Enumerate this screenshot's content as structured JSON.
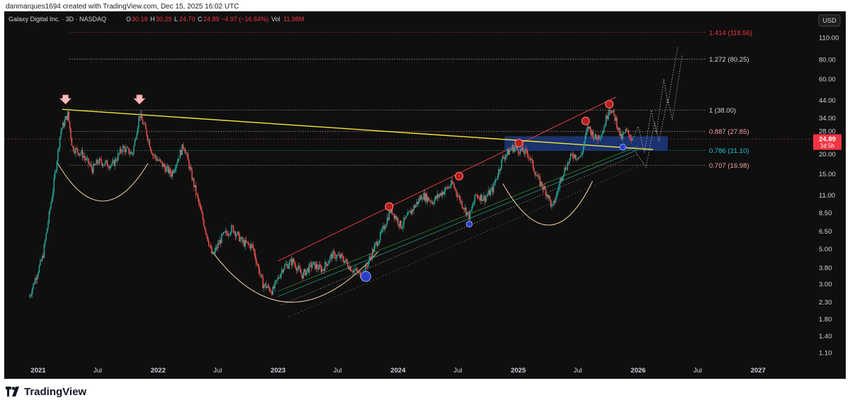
{
  "caption": "danmarques1694 created with TradingView.com, Dec 15, 2025 16:02 UTC",
  "legend": {
    "symbol": "Galaxy Digital Inc. · 3D · NASDAQ",
    "o_label": "O",
    "o_value": "30.19",
    "h_label": "H",
    "h_value": "30.29",
    "l_label": "L",
    "l_value": "24.70",
    "c_label": "C",
    "c_value": "24.89",
    "change": "−4.97 (−16.64%)",
    "vol_label": "Vol",
    "vol_value": "11.98M"
  },
  "currency": "USD",
  "footer": {
    "brand": "TradingView"
  },
  "colors": {
    "background": "#0f0f0f",
    "up": "#26a69a",
    "down": "#ef5350",
    "trendline": "#f5e63b",
    "channel": "#e03c3c",
    "support_band": "#1f3f8f",
    "fib_teal": "#26c6da",
    "price_tag": "#f23645",
    "arc": "#e6c99a"
  },
  "chart_data": {
    "type": "candlestick",
    "ylog": true,
    "y_ticks": [
      "110.00",
      "80.00",
      "60.00",
      "44.00",
      "34.00",
      "28.00",
      "20.00",
      "15.00",
      "11.00",
      "8.50",
      "6.50",
      "5.00",
      "3.80",
      "3.00",
      "2.30",
      "1.80",
      "1.40",
      "1.10"
    ],
    "x_ticks": [
      {
        "label": "2021",
        "date": "2021-01-01"
      },
      {
        "label": "Jul",
        "date": "2021-07-01"
      },
      {
        "label": "2022",
        "date": "2022-01-01"
      },
      {
        "label": "Jul",
        "date": "2022-07-01"
      },
      {
        "label": "2023",
        "date": "2023-01-01"
      },
      {
        "label": "Jul",
        "date": "2023-07-01"
      },
      {
        "label": "2024",
        "date": "2024-01-01"
      },
      {
        "label": "Jul",
        "date": "2024-07-01"
      },
      {
        "label": "2025",
        "date": "2025-01-01"
      },
      {
        "label": "Jul",
        "date": "2025-07-01"
      },
      {
        "label": "2026",
        "date": "2026-01-01"
      },
      {
        "label": "Jul",
        "date": "2026-07-01"
      },
      {
        "label": "2027",
        "date": "2027-01-01"
      }
    ],
    "price_path": [
      [
        "2020-12-05",
        2.5
      ],
      [
        "2021-01-15",
        4.5
      ],
      [
        "2021-02-15",
        12
      ],
      [
        "2021-03-10",
        28
      ],
      [
        "2021-04-01",
        36
      ],
      [
        "2021-04-15",
        22
      ],
      [
        "2021-05-15",
        20
      ],
      [
        "2021-06-15",
        16
      ],
      [
        "2021-07-01",
        18
      ],
      [
        "2021-08-15",
        17
      ],
      [
        "2021-09-15",
        22
      ],
      [
        "2021-10-15",
        20
      ],
      [
        "2021-11-05",
        36
      ],
      [
        "2021-11-25",
        28
      ],
      [
        "2021-12-15",
        20
      ],
      [
        "2022-01-15",
        17
      ],
      [
        "2022-02-10",
        15
      ],
      [
        "2022-03-20",
        23
      ],
      [
        "2022-04-15",
        14
      ],
      [
        "2022-05-15",
        8
      ],
      [
        "2022-06-15",
        4.5
      ],
      [
        "2022-07-15",
        6
      ],
      [
        "2022-08-15",
        6.8
      ],
      [
        "2022-09-15",
        5.5
      ],
      [
        "2022-10-15",
        5.2
      ],
      [
        "2022-11-15",
        3.0
      ],
      [
        "2022-12-15",
        2.7
      ],
      [
        "2023-01-15",
        3.8
      ],
      [
        "2023-02-15",
        4.2
      ],
      [
        "2023-03-15",
        3.4
      ],
      [
        "2023-04-15",
        4.0
      ],
      [
        "2023-05-15",
        3.7
      ],
      [
        "2023-06-15",
        4.6
      ],
      [
        "2023-07-15",
        4.4
      ],
      [
        "2023-08-15",
        3.7
      ],
      [
        "2023-09-15",
        3.4
      ],
      [
        "2023-10-15",
        4.8
      ],
      [
        "2023-11-15",
        6.5
      ],
      [
        "2023-12-10",
        9
      ],
      [
        "2024-01-10",
        7
      ],
      [
        "2024-02-15",
        9
      ],
      [
        "2024-03-15",
        11
      ],
      [
        "2024-04-15",
        10
      ],
      [
        "2024-05-15",
        11.5
      ],
      [
        "2024-06-15",
        13
      ],
      [
        "2024-07-10",
        10
      ],
      [
        "2024-08-05",
        8
      ],
      [
        "2024-08-25",
        11
      ],
      [
        "2024-09-20",
        10.5
      ],
      [
        "2024-10-15",
        12
      ],
      [
        "2024-11-15",
        19
      ],
      [
        "2024-12-15",
        22
      ],
      [
        "2025-01-10",
        21
      ],
      [
        "2025-02-01",
        20
      ],
      [
        "2025-03-01",
        14
      ],
      [
        "2025-04-01",
        11
      ],
      [
        "2025-04-15",
        9
      ],
      [
        "2025-05-15",
        15
      ],
      [
        "2025-06-15",
        20
      ],
      [
        "2025-07-10",
        19
      ],
      [
        "2025-08-01",
        30
      ],
      [
        "2025-08-25",
        25
      ],
      [
        "2025-09-15",
        28
      ],
      [
        "2025-10-05",
        40
      ],
      [
        "2025-10-25",
        33
      ],
      [
        "2025-11-10",
        25
      ],
      [
        "2025-11-25",
        28
      ],
      [
        "2025-12-15",
        24.89
      ]
    ],
    "last_price": "24.89",
    "countdown": "1d 5h",
    "fib_levels": [
      {
        "label": "1.414 (118.56)",
        "value": 118.56,
        "color": "#f23645"
      },
      {
        "label": "1.272 (80.25)",
        "value": 80.25,
        "color": "#d1d4dc"
      },
      {
        "label": "1 (38.00)",
        "value": 38.0,
        "color": "#d1d4dc"
      },
      {
        "label": "0.887 (27.85)",
        "value": 27.85,
        "color": "#f7a1a1"
      },
      {
        "label": "0.786 (21.10)",
        "value": 21.1,
        "color": "#26c6da"
      },
      {
        "label": "0.707 (16.98)",
        "value": 16.98,
        "color": "#f7a1a1"
      }
    ]
  }
}
